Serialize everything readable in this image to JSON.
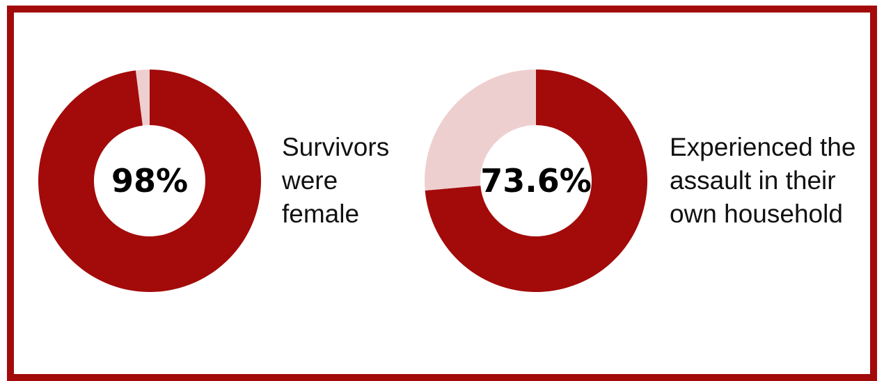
{
  "colors": {
    "primary": "#a30a0a",
    "secondary": "#eecfcf",
    "frame": "#a30a0a"
  },
  "chart_data": [
    {
      "type": "pie",
      "subtype": "donut",
      "center_label": "98%",
      "caption_lines": [
        "Survivors",
        "were",
        "female"
      ],
      "slices": [
        {
          "value": 98,
          "color": "#a30a0a"
        },
        {
          "value": 2,
          "color": "#eecfcf"
        }
      ]
    },
    {
      "type": "pie",
      "subtype": "donut",
      "center_label": "73.6%",
      "caption_lines": [
        "Experienced the",
        "assault in their",
        "own household"
      ],
      "slices": [
        {
          "value": 73.6,
          "color": "#a30a0a"
        },
        {
          "value": 26.4,
          "color": "#eecfcf"
        }
      ]
    }
  ]
}
